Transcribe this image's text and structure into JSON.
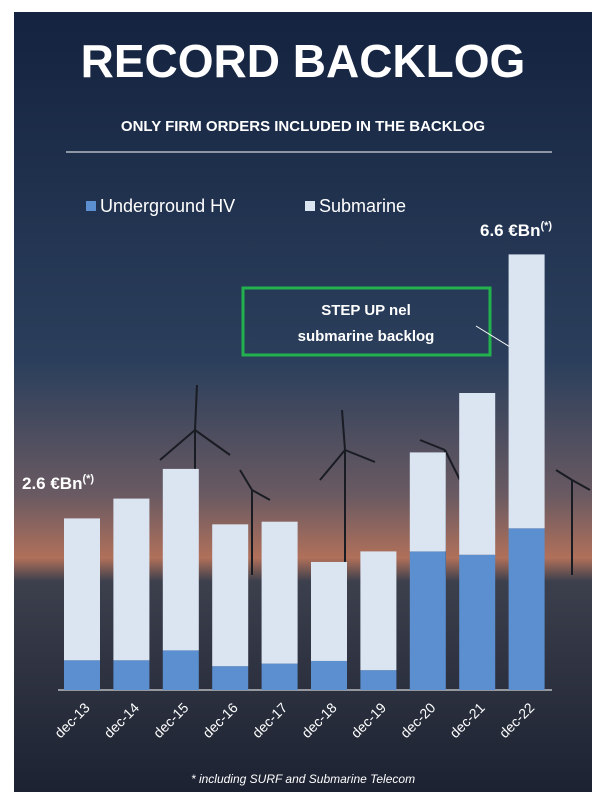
{
  "chart_data": {
    "type": "stacked-bar",
    "title": "RECORD BACKLOG",
    "subtitle": "ONLY FIRM ORDERS INCLUDED IN THE BACKLOG",
    "categories": [
      "dec-13",
      "dec-14",
      "dec-15",
      "dec-16",
      "dec-17",
      "dec-18",
      "dec-19",
      "dec-20",
      "dec-21",
      "dec-22"
    ],
    "series": [
      {
        "name": "Underground HV",
        "color": "#5b8fd0",
        "values": [
          0.45,
          0.45,
          0.6,
          0.36,
          0.4,
          0.44,
          0.3,
          2.1,
          2.05,
          2.45
        ]
      },
      {
        "name": "Submarine",
        "color": "#dbe5f2",
        "values": [
          2.15,
          2.45,
          2.75,
          2.15,
          2.15,
          1.5,
          1.8,
          1.5,
          2.45,
          4.15
        ]
      }
    ],
    "annotations": [
      {
        "text": "2.6 €Bn",
        "sup": "(*)"
      },
      {
        "text": "6.6 €Bn",
        "sup": "(*)"
      }
    ],
    "callout": {
      "lines": [
        "STEP UP nel",
        "submarine backlog"
      ],
      "color": "#22b14c"
    },
    "footnote": "* including SURF and Submarine Telecom"
  }
}
